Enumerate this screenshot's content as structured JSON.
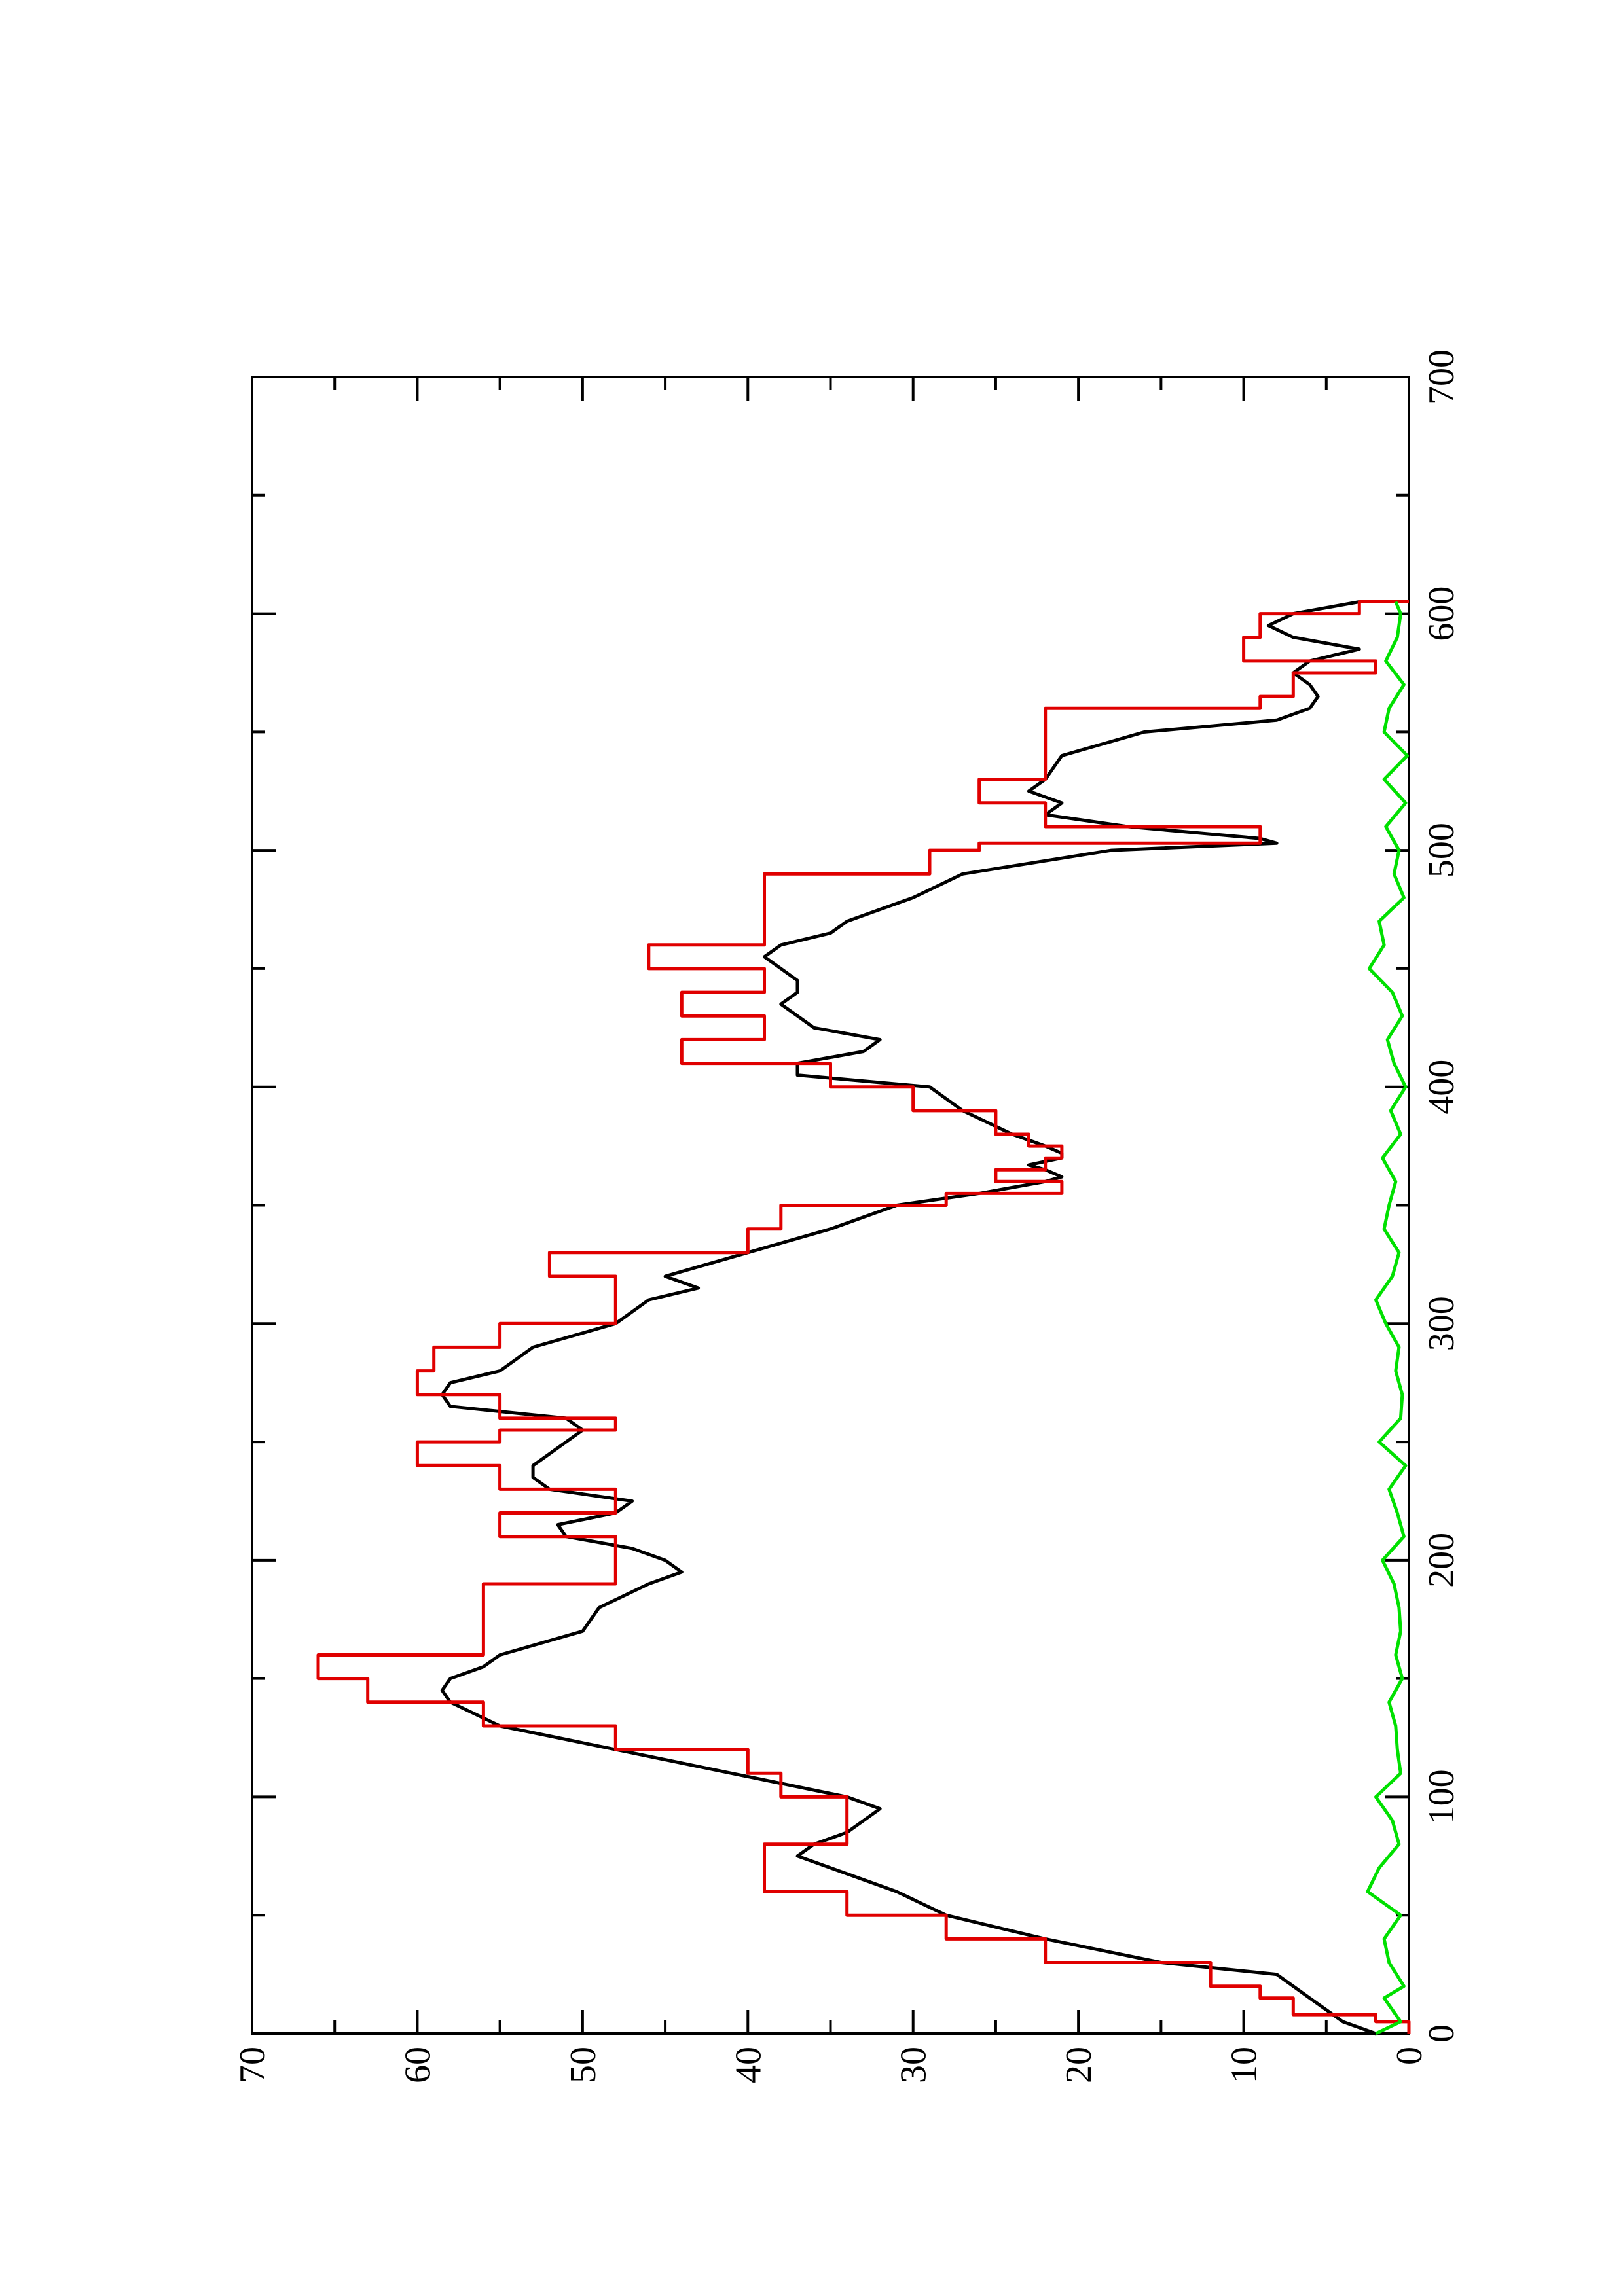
{
  "chart_data": {
    "type": "line",
    "title": "",
    "xlabel": "",
    "ylabel": "",
    "xlim": [
      0,
      700
    ],
    "ylim": [
      0,
      70
    ],
    "x_ticks": [
      0,
      100,
      200,
      300,
      400,
      500,
      600,
      700
    ],
    "y_ticks": [
      0,
      10,
      20,
      30,
      40,
      50,
      60,
      70
    ],
    "x_tick_labels": [
      "0",
      "100",
      "200",
      "300",
      "400",
      "500",
      "600",
      "700"
    ],
    "y_tick_labels": [
      "0",
      "10",
      "20",
      "30",
      "40",
      "50",
      "60",
      "70"
    ],
    "grid": false,
    "legend": "none",
    "orientation": "rotated 90° counter-clockwise on page",
    "series": [
      {
        "color": "#000000",
        "shape": "smooth",
        "x": [
          0,
          5,
          10,
          15,
          20,
          25,
          30,
          40,
          50,
          60,
          70,
          75,
          80,
          85,
          90,
          95,
          100,
          110,
          120,
          130,
          140,
          145,
          150,
          155,
          160,
          170,
          180,
          190,
          195,
          200,
          205,
          210,
          215,
          220,
          225,
          230,
          235,
          240,
          245,
          250,
          255,
          260,
          265,
          270,
          275,
          280,
          290,
          300,
          310,
          315,
          320,
          330,
          340,
          350,
          355,
          360,
          362,
          365,
          367,
          370,
          372,
          375,
          380,
          390,
          400,
          405,
          410,
          415,
          420,
          425,
          430,
          435,
          440,
          445,
          450,
          455,
          460,
          465,
          470,
          475,
          480,
          490,
          500,
          503,
          505,
          510,
          515,
          520,
          525,
          530,
          540,
          550,
          555,
          560,
          565,
          570,
          575,
          580,
          585,
          590,
          595,
          600,
          605
        ],
        "y": [
          2,
          4,
          5,
          6,
          7,
          8,
          15,
          22,
          28,
          31,
          35,
          37,
          36,
          34,
          33,
          32,
          34,
          41,
          48,
          55,
          58,
          58.5,
          58,
          56,
          55,
          50,
          49,
          46,
          44,
          45,
          47,
          51,
          51.5,
          48,
          47,
          52,
          53,
          53,
          52,
          51,
          50,
          51,
          58,
          58.5,
          58,
          55,
          53,
          48,
          46,
          43,
          45,
          40,
          35,
          31,
          26,
          22,
          21,
          22,
          23,
          21,
          21,
          22,
          24,
          27,
          29,
          37,
          37,
          33,
          32,
          36,
          37,
          38,
          37,
          37,
          38,
          39,
          38,
          35,
          34,
          32,
          30,
          27,
          18,
          8,
          9,
          17,
          22,
          21,
          23,
          22,
          21,
          16,
          8,
          6,
          5.5,
          6,
          7,
          6,
          3,
          7,
          8.5,
          7,
          3
        ]
      },
      {
        "color": "#e00000",
        "shape": "step",
        "x": [
          0,
          5,
          8,
          15,
          20,
          30,
          40,
          50,
          60,
          70,
          80,
          90,
          100,
          110,
          120,
          130,
          140,
          150,
          160,
          170,
          180,
          190,
          200,
          210,
          220,
          230,
          240,
          250,
          255,
          260,
          270,
          280,
          290,
          300,
          310,
          320,
          330,
          340,
          350,
          355,
          360,
          365,
          370,
          375,
          380,
          390,
          400,
          410,
          420,
          430,
          440,
          450,
          460,
          470,
          480,
          490,
          500,
          503,
          510,
          520,
          530,
          540,
          550,
          560,
          565,
          570,
          575,
          580,
          585,
          590,
          600,
          605
        ],
        "y": [
          0,
          2,
          7,
          9,
          12,
          22,
          28,
          34,
          39,
          39,
          34,
          34,
          38,
          40,
          48,
          56,
          63,
          66,
          56,
          56,
          56,
          48,
          48,
          55,
          48,
          55,
          60,
          55,
          48,
          55,
          60,
          59,
          55,
          48,
          48,
          52,
          40,
          38,
          28,
          21,
          25,
          22,
          21,
          23,
          25,
          30,
          35,
          44,
          39,
          44,
          39,
          46,
          39,
          39,
          39,
          29,
          26,
          9,
          22,
          26,
          22,
          22,
          22,
          9,
          7,
          7,
          2,
          10,
          10,
          9,
          3,
          0
        ]
      },
      {
        "color": "#00e000",
        "shape": "noise",
        "x": [
          0,
          5,
          10,
          15,
          20,
          30,
          40,
          50,
          60,
          70,
          80,
          90,
          100,
          110,
          120,
          130,
          140,
          150,
          160,
          170,
          180,
          190,
          200,
          210,
          220,
          230,
          240,
          250,
          260,
          270,
          280,
          290,
          300,
          310,
          320,
          330,
          340,
          350,
          360,
          370,
          380,
          390,
          400,
          410,
          420,
          430,
          440,
          450,
          460,
          470,
          480,
          490,
          500,
          510,
          520,
          530,
          540,
          550,
          560,
          570,
          580,
          590,
          600,
          605
        ],
        "y": [
          2,
          0.5,
          1,
          1.5,
          0.3,
          1.2,
          1.5,
          0.5,
          2.5,
          1.8,
          0.6,
          1,
          2,
          0.5,
          0.7,
          0.8,
          1.2,
          0.4,
          0.8,
          0.5,
          0.6,
          0.9,
          1.6,
          0.3,
          0.7,
          1.2,
          0.2,
          1.8,
          0.5,
          0.4,
          0.8,
          0.6,
          1.4,
          2,
          1,
          0.6,
          1.5,
          1.2,
          0.8,
          1.6,
          0.5,
          1.1,
          0.2,
          0.9,
          1.3,
          0.4,
          1,
          2.4,
          1.5,
          1.8,
          0.3,
          0.9,
          0.6,
          1.4,
          0.2,
          1.5,
          0.1,
          1.5,
          1.2,
          0.3,
          1.4,
          0.7,
          0.5,
          0.8
        ]
      }
    ]
  }
}
